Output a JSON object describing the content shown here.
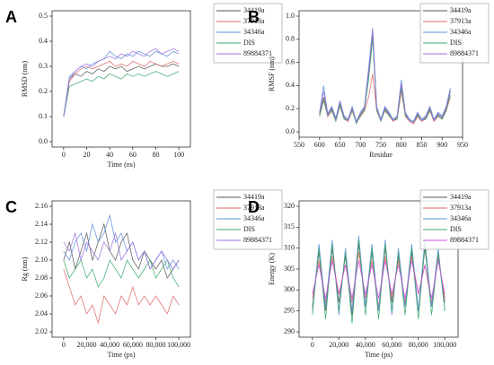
{
  "chart_data": [
    {
      "type": "line",
      "title": "A",
      "x_label": "Time (ns)",
      "y_label": "RMSD (nm)",
      "x": [
        0,
        5,
        10,
        15,
        20,
        25,
        30,
        35,
        40,
        45,
        50,
        55,
        60,
        65,
        70,
        75,
        80,
        85,
        90,
        95,
        100
      ],
      "xlim": [
        -10,
        110
      ],
      "xticks": [
        0,
        20,
        40,
        60,
        80,
        100
      ],
      "ylim": [
        0,
        0.5
      ],
      "yticks": [
        {
          "value": 0,
          "label": "0.0"
        },
        0.1,
        0.2,
        0.3,
        0.4,
        0.5
      ],
      "series": [
        {
          "name": "34419a",
          "color": "#555555",
          "values": [
            0.1,
            0.25,
            0.27,
            0.26,
            0.28,
            0.27,
            0.29,
            0.28,
            0.3,
            0.29,
            0.3,
            0.28,
            0.29,
            0.3,
            0.29,
            0.3,
            0.31,
            0.3,
            0.3,
            0.31,
            0.3
          ]
        },
        {
          "name": "37913a",
          "color": "#e06666",
          "values": [
            0.1,
            0.24,
            0.27,
            0.29,
            0.3,
            0.29,
            0.3,
            0.31,
            0.32,
            0.3,
            0.31,
            0.3,
            0.32,
            0.31,
            0.3,
            0.32,
            0.31,
            0.3,
            0.31,
            0.32,
            0.31
          ]
        },
        {
          "name": "34346a",
          "color": "#5b8fd9",
          "values": [
            0.1,
            0.26,
            0.28,
            0.3,
            0.29,
            0.31,
            0.32,
            0.33,
            0.36,
            0.34,
            0.33,
            0.35,
            0.34,
            0.36,
            0.35,
            0.34,
            0.36,
            0.35,
            0.34,
            0.36,
            0.35
          ]
        },
        {
          "name": "DIS",
          "color": "#3aa86b",
          "values": [
            0.1,
            0.22,
            0.23,
            0.24,
            0.25,
            0.24,
            0.26,
            0.25,
            0.27,
            0.26,
            0.25,
            0.27,
            0.26,
            0.27,
            0.26,
            0.27,
            0.28,
            0.27,
            0.26,
            0.27,
            0.28
          ]
        },
        {
          "name": "89884371",
          "color": "#9b6fe0",
          "values": [
            0.1,
            0.25,
            0.28,
            0.3,
            0.31,
            0.3,
            0.32,
            0.33,
            0.34,
            0.33,
            0.35,
            0.34,
            0.36,
            0.35,
            0.34,
            0.36,
            0.37,
            0.35,
            0.36,
            0.37,
            0.36
          ]
        }
      ]
    },
    {
      "type": "line",
      "title": "B",
      "x_label": "Residue",
      "y_label": "RMSF (nm)",
      "x": [
        600,
        610,
        620,
        630,
        640,
        650,
        660,
        670,
        680,
        690,
        700,
        710,
        720,
        730,
        740,
        750,
        760,
        770,
        780,
        790,
        800,
        810,
        820,
        830,
        840,
        850,
        860,
        870,
        880,
        890,
        900,
        910,
        920
      ],
      "xlim": [
        550,
        950
      ],
      "xticks": [
        550,
        600,
        650,
        700,
        750,
        800,
        850,
        900,
        950
      ],
      "ylim": [
        0,
        1.0
      ],
      "yticks": [
        {
          "value": 0,
          "label": "0.0"
        },
        0.2,
        0.4,
        0.6,
        0.8,
        {
          "value": 1,
          "label": "1.0"
        }
      ],
      "series": [
        {
          "name": "34419a",
          "color": "#555555",
          "values": [
            0.15,
            0.3,
            0.15,
            0.2,
            0.1,
            0.25,
            0.12,
            0.1,
            0.2,
            0.08,
            0.15,
            0.2,
            0.5,
            0.85,
            0.2,
            0.1,
            0.2,
            0.15,
            0.1,
            0.12,
            0.4,
            0.15,
            0.1,
            0.08,
            0.15,
            0.1,
            0.12,
            0.2,
            0.1,
            0.15,
            0.12,
            0.2,
            0.35
          ]
        },
        {
          "name": "37913a",
          "color": "#e06666",
          "values": [
            0.14,
            0.28,
            0.13,
            0.18,
            0.1,
            0.22,
            0.11,
            0.09,
            0.18,
            0.08,
            0.13,
            0.18,
            0.3,
            0.5,
            0.18,
            0.1,
            0.18,
            0.14,
            0.09,
            0.11,
            0.35,
            0.13,
            0.09,
            0.07,
            0.13,
            0.09,
            0.11,
            0.18,
            0.09,
            0.13,
            0.11,
            0.18,
            0.3
          ]
        },
        {
          "name": "34346a",
          "color": "#5b8fd9",
          "values": [
            0.17,
            0.4,
            0.16,
            0.22,
            0.12,
            0.27,
            0.14,
            0.11,
            0.22,
            0.09,
            0.17,
            0.22,
            0.55,
            0.9,
            0.22,
            0.11,
            0.22,
            0.17,
            0.11,
            0.14,
            0.45,
            0.17,
            0.11,
            0.09,
            0.17,
            0.11,
            0.14,
            0.22,
            0.11,
            0.17,
            0.14,
            0.22,
            0.38
          ]
        },
        {
          "name": "DIS",
          "color": "#3aa86b",
          "values": [
            0.13,
            0.27,
            0.14,
            0.19,
            0.09,
            0.23,
            0.11,
            0.1,
            0.19,
            0.07,
            0.14,
            0.19,
            0.45,
            0.8,
            0.19,
            0.09,
            0.19,
            0.14,
            0.1,
            0.11,
            0.38,
            0.14,
            0.1,
            0.08,
            0.14,
            0.1,
            0.11,
            0.19,
            0.1,
            0.14,
            0.11,
            0.19,
            0.32
          ]
        },
        {
          "name": "89884371",
          "color": "#9b6fe0",
          "values": [
            0.16,
            0.35,
            0.15,
            0.21,
            0.11,
            0.26,
            0.13,
            0.1,
            0.21,
            0.08,
            0.16,
            0.21,
            0.52,
            0.88,
            0.21,
            0.1,
            0.21,
            0.16,
            0.1,
            0.13,
            0.42,
            0.16,
            0.1,
            0.08,
            0.16,
            0.1,
            0.13,
            0.21,
            0.1,
            0.16,
            0.13,
            0.21,
            0.36
          ]
        }
      ]
    },
    {
      "type": "line",
      "title": "C",
      "x_label": "Time (ps)",
      "y_label": "Rg (nm)",
      "x": [
        0,
        5000,
        10000,
        15000,
        20000,
        25000,
        30000,
        35000,
        40000,
        45000,
        50000,
        55000,
        60000,
        65000,
        70000,
        75000,
        80000,
        85000,
        90000,
        95000,
        100000
      ],
      "xlim": [
        -10000,
        110000
      ],
      "xticks": [
        0,
        {
          "value": 20000,
          "label": "20,000"
        },
        {
          "value": 40000,
          "label": "40,000"
        },
        {
          "value": 60000,
          "label": "60,000"
        },
        {
          "value": 80000,
          "label": "80,000"
        },
        {
          "value": 100000,
          "label": "100,000"
        }
      ],
      "ylim": [
        2.02,
        2.16
      ],
      "yticks": [
        2.02,
        2.04,
        2.06,
        2.08,
        {
          "value": 2.1,
          "label": "2.10"
        },
        2.12,
        2.14,
        2.16
      ],
      "series": [
        {
          "name": "34419a",
          "color": "#555555",
          "values": [
            2.1,
            2.12,
            2.09,
            2.11,
            2.13,
            2.1,
            2.12,
            2.14,
            2.11,
            2.1,
            2.12,
            2.13,
            2.1,
            2.09,
            2.11,
            2.1,
            2.09,
            2.1,
            2.08,
            2.09,
            2.1
          ]
        },
        {
          "name": "37913a",
          "color": "#e06666",
          "values": [
            2.09,
            2.07,
            2.05,
            2.06,
            2.04,
            2.05,
            2.03,
            2.06,
            2.05,
            2.04,
            2.06,
            2.05,
            2.07,
            2.05,
            2.06,
            2.05,
            2.06,
            2.05,
            2.04,
            2.06,
            2.05
          ]
        },
        {
          "name": "34346a",
          "color": "#5b8fd9",
          "values": [
            2.11,
            2.1,
            2.12,
            2.13,
            2.11,
            2.14,
            2.12,
            2.13,
            2.15,
            2.12,
            2.13,
            2.11,
            2.12,
            2.1,
            2.11,
            2.09,
            2.1,
            2.11,
            2.09,
            2.1,
            2.09
          ]
        },
        {
          "name": "DIS",
          "color": "#3aa86b",
          "values": [
            2.1,
            2.08,
            2.09,
            2.1,
            2.08,
            2.09,
            2.07,
            2.08,
            2.1,
            2.09,
            2.08,
            2.1,
            2.09,
            2.08,
            2.09,
            2.1,
            2.08,
            2.09,
            2.1,
            2.08,
            2.07
          ]
        },
        {
          "name": "89884371",
          "color": "#9b6fe0",
          "values": [
            2.12,
            2.11,
            2.13,
            2.1,
            2.12,
            2.11,
            2.1,
            2.12,
            2.11,
            2.13,
            2.1,
            2.11,
            2.12,
            2.1,
            2.11,
            2.09,
            2.1,
            2.11,
            2.1,
            2.09,
            2.1
          ]
        }
      ]
    },
    {
      "type": "line",
      "title": "D",
      "x_label": "Time (ps)",
      "y_label": "Energy (K)",
      "x": [
        0,
        5000,
        10000,
        15000,
        20000,
        25000,
        30000,
        35000,
        40000,
        45000,
        50000,
        55000,
        60000,
        65000,
        70000,
        75000,
        80000,
        85000,
        90000,
        95000,
        100000
      ],
      "xlim": [
        -10000,
        110000
      ],
      "xticks": [
        0,
        {
          "value": 20000,
          "label": "20,000"
        },
        {
          "value": 40000,
          "label": "40,000"
        },
        {
          "value": 60000,
          "label": "60,000"
        },
        {
          "value": 80000,
          "label": "80,000"
        },
        {
          "value": 100000,
          "label": "100,000"
        }
      ],
      "ylim": [
        290,
        320
      ],
      "yticks": [
        290,
        295,
        300,
        305,
        310,
        315,
        320
      ],
      "series": [
        {
          "name": "34419a",
          "color": "#555555",
          "values": [
            296,
            309,
            295,
            310,
            297,
            308,
            294,
            311,
            296,
            309,
            295,
            310,
            297,
            308,
            296,
            309,
            295,
            310,
            296,
            308,
            297
          ]
        },
        {
          "name": "37913a",
          "color": "#e06666",
          "values": [
            298,
            307,
            297,
            308,
            299,
            306,
            297,
            309,
            298,
            307,
            296,
            308,
            298,
            307,
            297,
            308,
            299,
            306,
            297,
            308,
            298
          ]
        },
        {
          "name": "34346a",
          "color": "#5b8fd9",
          "values": [
            295,
            311,
            296,
            312,
            294,
            310,
            295,
            313,
            296,
            311,
            295,
            312,
            294,
            310,
            296,
            311,
            295,
            312,
            296,
            310,
            295
          ]
        },
        {
          "name": "DIS",
          "color": "#3aa86b",
          "values": [
            294,
            310,
            293,
            311,
            295,
            309,
            292,
            312,
            294,
            310,
            293,
            311,
            295,
            309,
            294,
            310,
            293,
            311,
            294,
            309,
            295
          ]
        },
        {
          "name": "89884371",
          "color": "#d050e0",
          "values": [
            299,
            306,
            298,
            307,
            299,
            306,
            298,
            307,
            299,
            306,
            298,
            307,
            299,
            306,
            298,
            307,
            299,
            306,
            298,
            307,
            299
          ]
        }
      ]
    }
  ]
}
